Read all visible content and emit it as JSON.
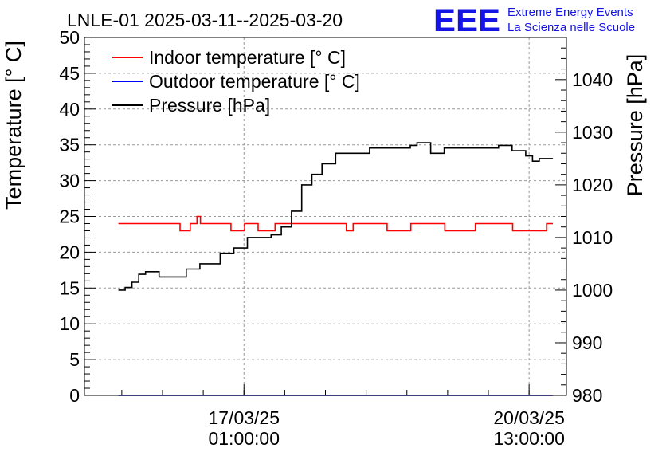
{
  "chart_data": {
    "type": "line",
    "title": "LNLE-01 2025-03-11--2025-03-20",
    "ylabel": "Temperature [° C]",
    "y2label": "Pressure [hPa]",
    "ylim": [
      0,
      50
    ],
    "y2lim": [
      980,
      1048
    ],
    "yticks": [
      "0",
      "5",
      "10",
      "15",
      "20",
      "25",
      "30",
      "35",
      "40",
      "45",
      "50"
    ],
    "y2ticks": [
      "980",
      "990",
      "1000",
      "1010",
      "1020",
      "1030",
      "1040"
    ],
    "xticks": [
      {
        "date": "17/03/25",
        "time": "01:00:00"
      },
      {
        "date": "20/03/25",
        "time": "13:00:00"
      }
    ],
    "xlim": [
      "2025-03-15 02:00",
      "2025-03-21 00:00"
    ],
    "grid": true,
    "legend_position": "top-left",
    "series": [
      {
        "name": "Indoor temperature [° C]",
        "color": "#ff0000",
        "axis": "left",
        "x": [
          "2025-03-15 12:00",
          "2025-03-16 06:00",
          "2025-03-16 06:10",
          "2025-03-16 09:00",
          "2025-03-16 09:10",
          "2025-03-16 11:00",
          "2025-03-16 11:10",
          "2025-03-16 12:00",
          "2025-03-16 12:10",
          "2025-03-16 21:00",
          "2025-03-16 21:10",
          "2025-03-17 01:00",
          "2025-03-17 01:10",
          "2025-03-17 05:00",
          "2025-03-17 05:10",
          "2025-03-17 10:00",
          "2025-03-17 10:10",
          "2025-03-18 07:00",
          "2025-03-18 07:10",
          "2025-03-18 09:00",
          "2025-03-18 09:10",
          "2025-03-18 19:00",
          "2025-03-18 19:10",
          "2025-03-19 02:00",
          "2025-03-19 02:10",
          "2025-03-19 12:00",
          "2025-03-19 12:10",
          "2025-03-19 21:00",
          "2025-03-19 21:10",
          "2025-03-20 08:00",
          "2025-03-20 08:10",
          "2025-03-20 18:00",
          "2025-03-20 18:10",
          "2025-03-20 20:00"
        ],
        "y": [
          24,
          24,
          23,
          23,
          24,
          24,
          25,
          25,
          24,
          24,
          23,
          23,
          24,
          24,
          23,
          23,
          24,
          24,
          23,
          23,
          24,
          24,
          23,
          23,
          24,
          24,
          23,
          23,
          24,
          24,
          23,
          23,
          24,
          24
        ]
      },
      {
        "name": "Outdoor temperature [° C]",
        "color": "#0000ff",
        "axis": "left",
        "x": [
          "2025-03-15 12:00",
          "2025-03-20 20:00"
        ],
        "y": [
          0,
          0
        ]
      },
      {
        "name": "Pressure [hPa]",
        "color": "#000000",
        "axis": "right",
        "x": [
          "2025-03-15 12:00",
          "2025-03-15 14:00",
          "2025-03-15 16:00",
          "2025-03-15 18:00",
          "2025-03-15 20:00",
          "2025-03-16 00:00",
          "2025-03-16 06:00",
          "2025-03-16 08:00",
          "2025-03-16 12:00",
          "2025-03-16 18:00",
          "2025-03-16 22:00",
          "2025-03-17 02:00",
          "2025-03-17 06:00",
          "2025-03-17 09:00",
          "2025-03-17 12:00",
          "2025-03-17 15:00",
          "2025-03-17 18:00",
          "2025-03-17 21:00",
          "2025-03-18 00:00",
          "2025-03-18 04:00",
          "2025-03-18 08:00",
          "2025-03-18 14:00",
          "2025-03-18 20:00",
          "2025-03-19 02:00",
          "2025-03-19 04:00",
          "2025-03-19 08:00",
          "2025-03-19 12:00",
          "2025-03-19 16:00",
          "2025-03-19 22:00",
          "2025-03-20 04:00",
          "2025-03-20 08:00",
          "2025-03-20 12:00",
          "2025-03-20 14:00",
          "2025-03-20 16:00",
          "2025-03-20 20:00"
        ],
        "y": [
          1000,
          1000.5,
          1001.5,
          1003,
          1003.5,
          1002.5,
          1002.5,
          1004,
          1005,
          1007,
          1008,
          1010,
          1010,
          1010.5,
          1012,
          1015,
          1020,
          1022,
          1024,
          1026,
          1026,
          1027,
          1027,
          1027.5,
          1028,
          1026,
          1027,
          1027,
          1027,
          1027.5,
          1026.5,
          1025.5,
          1024.5,
          1025,
          1025
        ]
      }
    ]
  },
  "logo": {
    "text": "EEE",
    "line1": "Extreme Energy Events",
    "line2": "La Scienza nelle Scuole",
    "color": "#1414e6"
  }
}
